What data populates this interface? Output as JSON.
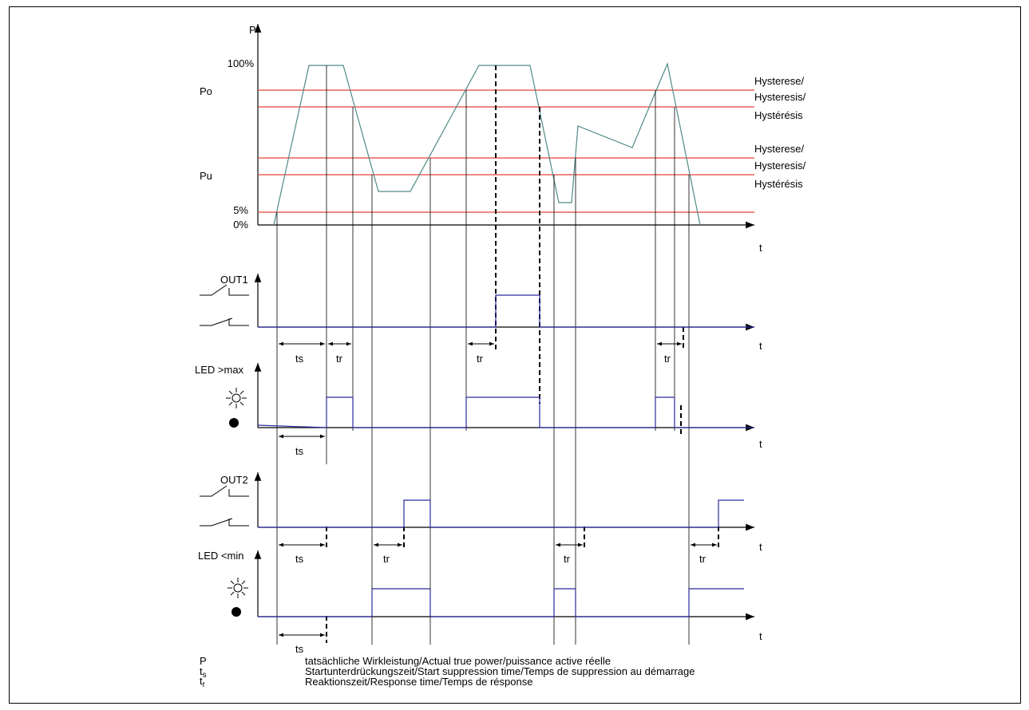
{
  "axes": {
    "power": {
      "label": "P",
      "ticks": {
        "p100": "100%",
        "po": "Po",
        "pu": "Pu",
        "p5": "5%",
        "p0": "0%"
      }
    },
    "time_label": "t"
  },
  "hysteresis": [
    "Hysterese/",
    "Hysteresis/",
    "Hystérésis"
  ],
  "channels": {
    "out1": "OUT1",
    "led_max": "LED >max",
    "out2": "OUT2",
    "led_min": "LED <min"
  },
  "intervals": {
    "ts": "ts",
    "tr": "tr"
  },
  "legend": [
    {
      "symbol": "P",
      "text": "tatsächliche Wirkleistung/Actual true power/puissance active réelle"
    },
    {
      "symbol": "t",
      "sub": "s",
      "text": "Startunterdrückungszeit/Start suppression time/Temps de suppression au démarrage"
    },
    {
      "symbol": "t",
      "sub": "r",
      "text": "Reaktionszeit/Response time/Temps de résponse"
    }
  ],
  "colors": {
    "threshold": "#e8423c",
    "power_curve": "#4f8a86",
    "signal": "#2b2b9a",
    "text": "#000000"
  }
}
